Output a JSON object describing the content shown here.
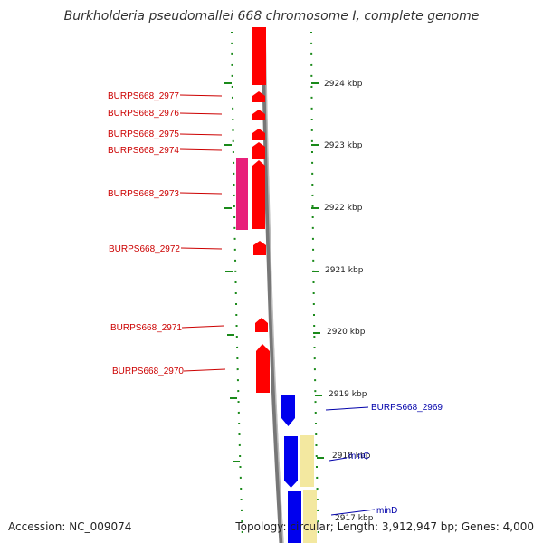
{
  "title": "Burkholderia pseudomallei 668 chromosome I, complete genome",
  "accession": "Accession: NC_009074",
  "summary": "Topology: circular; Length: 3,912,947 bp; Genes: 4,000",
  "colors": {
    "forward_gene": "#ff0000",
    "forward_gene_alt": "#e8207a",
    "reverse_gene": "#0000ee",
    "reverse_gene_light": "#f3e8a0",
    "backbone": "#8a8a8a",
    "tick": "#1a8a1a",
    "label_forward": "#cc0000",
    "label_reverse": "#0000aa"
  },
  "scale_labels": [
    "2924 kbp",
    "2923 kbp",
    "2922 kbp",
    "2921 kbp",
    "2920 kbp",
    "2919 kbp",
    "2918 kbp",
    "2917 kbp"
  ],
  "forward_genes": [
    "BURPS668_2977",
    "BURPS668_2976",
    "BURPS668_2975",
    "BURPS668_2974",
    "BURPS668_2973",
    "BURPS668_2972",
    "BURPS668_2971",
    "BURPS668_2970"
  ],
  "reverse_genes": [
    "BURPS668_2969",
    "minC",
    "minD"
  ]
}
